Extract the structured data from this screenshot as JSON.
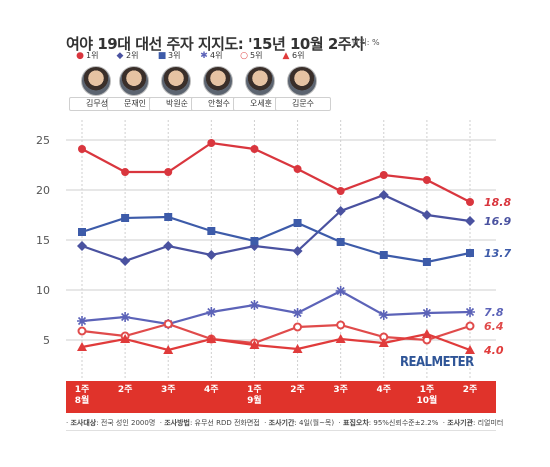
{
  "title": "여야 19대 대선 주자 지지도: '15년 10월 2주차",
  "unit": "단위: %",
  "brand": "REALMETER",
  "legend": [
    {
      "rank": "1위",
      "marker": "circle-filled-icon",
      "color": "#d9363e"
    },
    {
      "rank": "2위",
      "marker": "diamond-filled-icon",
      "color": "#4a52a0"
    },
    {
      "rank": "3위",
      "marker": "square-filled-icon",
      "color": "#3d5ba9"
    },
    {
      "rank": "4위",
      "marker": "asterisk-icon",
      "color": "#5c63b8"
    },
    {
      "rank": "5위",
      "marker": "circle-open-icon",
      "color": "#e04b4b"
    },
    {
      "rank": "6위",
      "marker": "triangle-filled-icon",
      "color": "#e03b3b"
    }
  ],
  "candidates": [
    "김무성",
    "문재인",
    "박원순",
    "안철수",
    "오세훈",
    "김문수"
  ],
  "periods": [
    {
      "week": "1주",
      "month": "8월"
    },
    {
      "week": "2주",
      "month": ""
    },
    {
      "week": "3주",
      "month": ""
    },
    {
      "week": "4주",
      "month": ""
    },
    {
      "week": "1주",
      "month": "9월"
    },
    {
      "week": "2주",
      "month": ""
    },
    {
      "week": "3주",
      "month": ""
    },
    {
      "week": "4주",
      "month": ""
    },
    {
      "week": "1주",
      "month": "10월"
    },
    {
      "week": "2주",
      "month": ""
    }
  ],
  "footer": {
    "target_label": "조사대상",
    "target_value": "전국 성인 2000명",
    "method_label": "조사방법",
    "method_value": "유무선 RDD 전화면접",
    "period_label": "조사기간",
    "period_value": "4일(월~목)",
    "error_label": "표집오차",
    "error_value": "95%신뢰수준±2.2%",
    "org_label": "조사기관",
    "org_value": "리얼미터"
  },
  "chart_data": {
    "type": "line",
    "x": [
      "8월 1주",
      "8월 2주",
      "8월 3주",
      "8월 4주",
      "9월 1주",
      "9월 2주",
      "9월 3주",
      "9월 4주",
      "10월 1주",
      "10월 2주"
    ],
    "ylim": [
      2,
      27
    ],
    "yticks": [
      5,
      10,
      15,
      20,
      25
    ],
    "grid": true,
    "series": [
      {
        "name": "1위",
        "marker": "circle",
        "color": "#d9363e",
        "values": [
          24.1,
          21.8,
          21.8,
          24.7,
          24.1,
          22.1,
          19.9,
          21.5,
          21.0,
          18.8
        ],
        "end_label": "18.8"
      },
      {
        "name": "2위",
        "marker": "diamond",
        "color": "#4a52a0",
        "values": [
          14.4,
          12.9,
          14.4,
          13.5,
          14.4,
          13.9,
          17.9,
          19.5,
          17.5,
          16.9
        ],
        "end_label": "16.9"
      },
      {
        "name": "3위",
        "marker": "square",
        "color": "#3d5ba9",
        "values": [
          15.8,
          17.2,
          17.3,
          15.9,
          14.9,
          16.7,
          14.8,
          13.5,
          12.8,
          13.7
        ],
        "end_label": "13.7"
      },
      {
        "name": "4위",
        "marker": "asterisk",
        "color": "#5c63b8",
        "values": [
          6.9,
          7.3,
          6.6,
          7.8,
          8.5,
          7.7,
          9.9,
          7.5,
          7.7,
          7.8
        ],
        "end_label": "7.8"
      },
      {
        "name": "5위",
        "marker": "circle-open",
        "color": "#e04b4b",
        "values": [
          5.9,
          5.4,
          6.6,
          5.1,
          4.7,
          6.3,
          6.5,
          5.3,
          5.0,
          6.4
        ],
        "end_label": "6.4"
      },
      {
        "name": "6위",
        "marker": "triangle",
        "color": "#e03b3b",
        "values": [
          4.3,
          5.1,
          4.0,
          5.1,
          4.5,
          4.1,
          5.1,
          4.7,
          5.6,
          4.0
        ],
        "end_label": "4.0"
      }
    ]
  }
}
